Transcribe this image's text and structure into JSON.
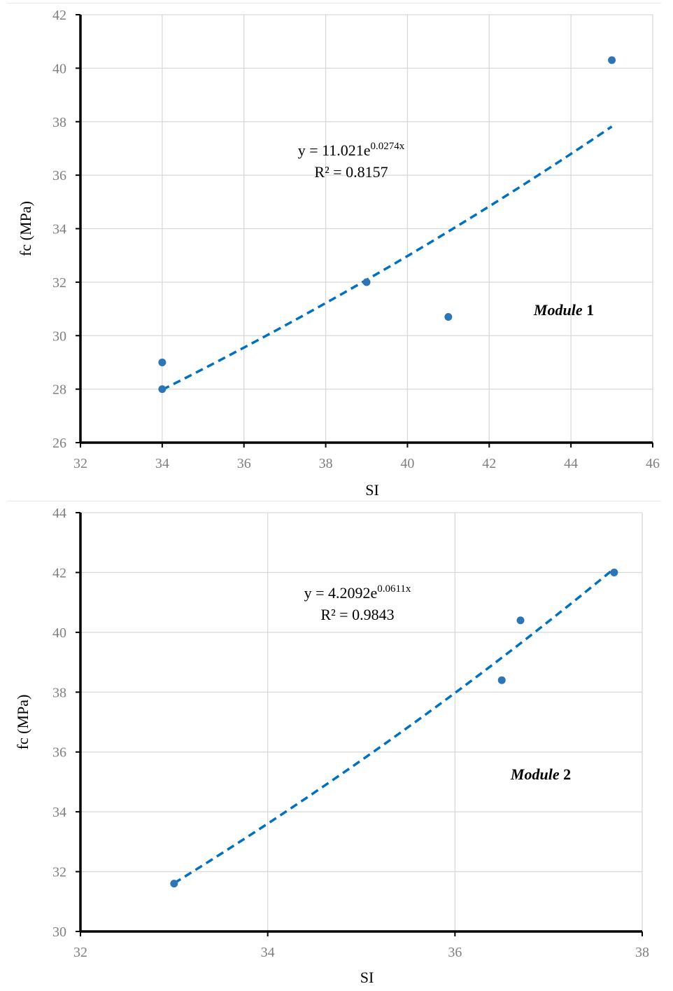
{
  "chart_data": [
    {
      "type": "scatter",
      "module_label": {
        "italic": "Module",
        "number": "1"
      },
      "xlabel": "SI",
      "ylabel": "fc (MPa)",
      "xlim": [
        32,
        46
      ],
      "ylim": [
        26,
        42
      ],
      "x_ticks": [
        32,
        34,
        36,
        38,
        40,
        42,
        44,
        46
      ],
      "y_ticks": [
        26,
        28,
        30,
        32,
        34,
        36,
        38,
        40,
        42
      ],
      "grid": true,
      "points": [
        {
          "x": 34,
          "y": 29
        },
        {
          "x": 34,
          "y": 28
        },
        {
          "x": 39,
          "y": 32
        },
        {
          "x": 41,
          "y": 30.7
        },
        {
          "x": 45,
          "y": 40.3
        }
      ],
      "trendline": {
        "type": "exponential",
        "a": 11.021,
        "b": 0.0274,
        "x_range": [
          34,
          45
        ],
        "equation_prefix": "y = 11.021e",
        "equation_exponent": "0.0274x",
        "r2_text": "R² = 0.8157"
      },
      "colors": {
        "points": "#2e75b6",
        "trendline": "#0070c0",
        "grid": "#d9d9d9",
        "axis": "#000000"
      }
    },
    {
      "type": "scatter",
      "module_label": {
        "italic": "Module",
        "number": "2"
      },
      "xlabel": "SI",
      "ylabel": "fc (MPa)",
      "xlim": [
        32,
        38
      ],
      "ylim": [
        30,
        44
      ],
      "x_ticks": [
        32,
        34,
        36,
        38
      ],
      "y_ticks": [
        30,
        32,
        34,
        36,
        38,
        40,
        42,
        44
      ],
      "grid": true,
      "points": [
        {
          "x": 33.0,
          "y": 31.6
        },
        {
          "x": 36.5,
          "y": 38.4
        },
        {
          "x": 36.7,
          "y": 40.4
        },
        {
          "x": 37.7,
          "y": 42.0
        }
      ],
      "trendline": {
        "type": "exponential",
        "a": 4.2092,
        "b": 0.0611,
        "x_range": [
          33.0,
          37.7
        ],
        "equation_prefix": "y = 4.2092e",
        "equation_exponent": "0.0611x",
        "r2_text": "R² = 0.9843"
      },
      "colors": {
        "points": "#2e75b6",
        "trendline": "#0070c0",
        "grid": "#d9d9d9",
        "axis": "#000000"
      }
    }
  ]
}
